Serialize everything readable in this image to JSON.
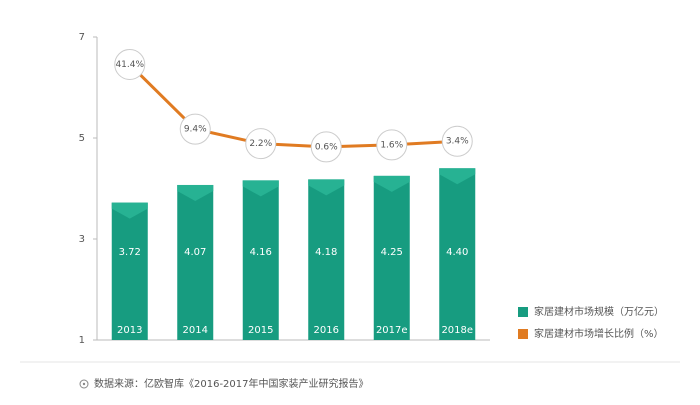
{
  "chart_data": {
    "type": "bar",
    "categories": [
      "2013",
      "2014",
      "2015",
      "2016",
      "2017e",
      "2018e"
    ],
    "series": [
      {
        "name": "家居建材市场规模（万亿元）",
        "color": "#179c80",
        "type": "bar",
        "values": [
          3.72,
          4.07,
          4.16,
          4.18,
          4.25,
          4.4
        ],
        "value_labels": [
          "3.72",
          "4.07",
          "4.16",
          "4.18",
          "4.25",
          "4.40"
        ]
      },
      {
        "name": "家居建材市场增长比例（%）",
        "color": "#e07b22",
        "type": "line",
        "axis": "y2",
        "values": [
          41.4,
          9.4,
          2.2,
          0.6,
          1.6,
          3.4
        ],
        "value_labels": [
          "41.4%",
          "9.4%",
          "2.2%",
          "0.6%",
          "1.6%",
          "3.4%"
        ]
      }
    ],
    "ylim": [
      1,
      7
    ],
    "yticks": [
      1,
      3,
      5,
      7
    ],
    "y2lim": [
      -95,
      55
    ],
    "legend": "right",
    "source": "数据来源：亿欧智库《2016-2017年中国家装产业研究报告》"
  }
}
